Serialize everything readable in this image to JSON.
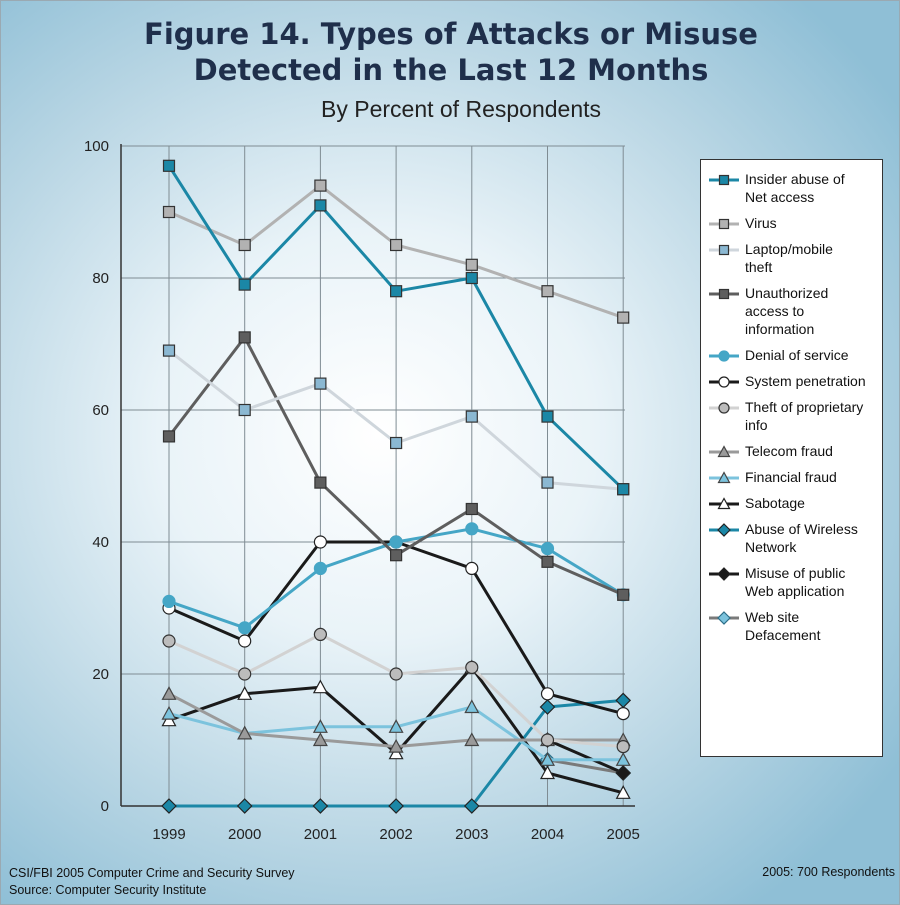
{
  "chart_data": {
    "type": "line",
    "title": "Figure 14. Types of Attacks or Misuse",
    "title_line2": "Detected in the Last 12 Months",
    "subtitle": "By Percent of Respondents",
    "x": [
      "1999",
      "2000",
      "2001",
      "2002",
      "2003",
      "2004",
      "2005"
    ],
    "ylim": [
      0,
      100
    ],
    "yticks": [
      0,
      20,
      40,
      60,
      80,
      100
    ],
    "grid": true,
    "legend_position": "right",
    "series": [
      {
        "name": "Insider abuse of Net access",
        "label_lines": [
          "Insider abuse of",
          "Net access"
        ],
        "color": "#1b87a6",
        "marker": "square",
        "values": [
          97,
          79,
          91,
          78,
          80,
          59,
          48
        ]
      },
      {
        "name": "Virus",
        "label_lines": [
          "Virus"
        ],
        "color": "#b2b2b2",
        "marker": "square",
        "values": [
          90,
          85,
          94,
          85,
          82,
          78,
          74
        ]
      },
      {
        "name": "Laptop/mobile theft",
        "label_lines": [
          "Laptop/mobile",
          "theft"
        ],
        "color": "#cfd6dc",
        "marker": "square-blue",
        "values": [
          69,
          60,
          64,
          55,
          59,
          49,
          48
        ]
      },
      {
        "name": "Unauthorized access to information",
        "label_lines": [
          "Unauthorized",
          "access to",
          "information"
        ],
        "color": "#5e5e5e",
        "marker": "square",
        "values": [
          56,
          71,
          49,
          38,
          45,
          37,
          32
        ]
      },
      {
        "name": "Denial of service",
        "label_lines": [
          "Denial of service"
        ],
        "color": "#45a6c6",
        "marker": "circle",
        "values": [
          31,
          27,
          36,
          40,
          42,
          39,
          32
        ]
      },
      {
        "name": "System penetration",
        "label_lines": [
          "System penetration"
        ],
        "color": "#1a1a1a",
        "marker": "circle-open",
        "values": [
          30,
          25,
          40,
          40,
          36,
          17,
          14
        ]
      },
      {
        "name": "Theft of proprietary info",
        "label_lines": [
          "Theft of proprietary",
          "info"
        ],
        "color": "#d2d2d2",
        "marker": "circle-gray",
        "values": [
          25,
          20,
          26,
          20,
          21,
          10,
          9
        ]
      },
      {
        "name": "Telecom fraud",
        "label_lines": [
          "Telecom fraud"
        ],
        "color": "#9a9a9a",
        "marker": "triangle",
        "values": [
          17,
          11,
          10,
          9,
          10,
          10,
          10
        ]
      },
      {
        "name": "Financial fraud",
        "label_lines": [
          "Financial fraud"
        ],
        "color": "#7cc3dd",
        "marker": "triangle",
        "values": [
          14,
          11,
          12,
          12,
          15,
          7,
          7
        ]
      },
      {
        "name": "Sabotage",
        "label_lines": [
          "Sabotage"
        ],
        "color": "#1a1a1a",
        "marker": "triangle-open",
        "values": [
          13,
          17,
          18,
          8,
          21,
          5,
          2
        ]
      },
      {
        "name": "Abuse of Wireless Network",
        "label_lines": [
          "Abuse of Wireless",
          "Network"
        ],
        "color": "#1b87a6",
        "marker": "diamond",
        "values": [
          0,
          0,
          0,
          0,
          0,
          15,
          16
        ]
      },
      {
        "name": "Misuse of public Web application",
        "label_lines": [
          "Misuse of public",
          "Web application"
        ],
        "color": "#1a1a1a",
        "marker": "diamond",
        "values": [
          null,
          null,
          null,
          null,
          null,
          10,
          5
        ]
      },
      {
        "name": "Web site Defacement",
        "label_lines": [
          "Web site",
          "Defacement"
        ],
        "color": "#7a7a7a",
        "marker": "diamond-light",
        "values": [
          null,
          null,
          null,
          null,
          null,
          7,
          5
        ]
      }
    ]
  },
  "footer": {
    "left_line1": "CSI/FBI 2005 Computer Crime and Security Survey",
    "left_line2": "Source: Computer Security Institute",
    "right": "2005: 700 Respondents"
  }
}
